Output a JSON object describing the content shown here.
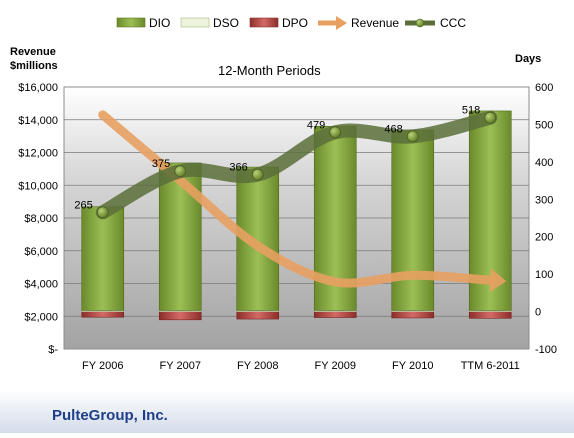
{
  "chart_data": {
    "type": "bar",
    "title": "12-Month Periods",
    "company": "PulteGroup, Inc.",
    "categories": [
      "FY 2006",
      "FY 2007",
      "FY 2008",
      "FY 2009",
      "FY 2010",
      "TTM 6-2011"
    ],
    "y_left": {
      "label_line1": "Revenue",
      "label_line2": "$millions",
      "ylim": [
        0,
        16000
      ],
      "ticks": [
        "$-",
        "$2,000",
        "$4,000",
        "$6,000",
        "$8,000",
        "$10,000",
        "$12,000",
        "$14,000",
        "$16,000"
      ]
    },
    "y_right": {
      "label": "Days",
      "ylim": [
        -100,
        600
      ],
      "ticks": [
        "-100",
        "0",
        "100",
        "200",
        "300",
        "400",
        "500",
        "600"
      ]
    },
    "grid": true,
    "legend_position": "top",
    "series": [
      {
        "name": "DIO",
        "kind": "bar",
        "axis": "right",
        "color": "#7a9c3a",
        "values": [
          277,
          394,
          383,
          492,
          482,
          533
        ]
      },
      {
        "name": "DSO",
        "kind": "bar",
        "axis": "right",
        "color": "#eef3dc",
        "values": [
          3,
          3,
          3,
          3,
          3,
          3
        ]
      },
      {
        "name": "DPO",
        "kind": "bar",
        "axis": "right",
        "color": "#c0504d",
        "values": [
          -15,
          -22,
          -20,
          -16,
          -17,
          -18
        ]
      },
      {
        "name": "Revenue",
        "kind": "arrow",
        "axis": "left",
        "color": "#e8a060",
        "values": [
          14300,
          10300,
          6300,
          4100,
          4500,
          4200
        ]
      },
      {
        "name": "CCC",
        "kind": "line",
        "axis": "right",
        "color": "#5a6e3a",
        "values": [
          265,
          375,
          366,
          479,
          468,
          518
        ],
        "labels": [
          "265",
          "375",
          "366",
          "479",
          "468",
          "518"
        ]
      }
    ]
  }
}
